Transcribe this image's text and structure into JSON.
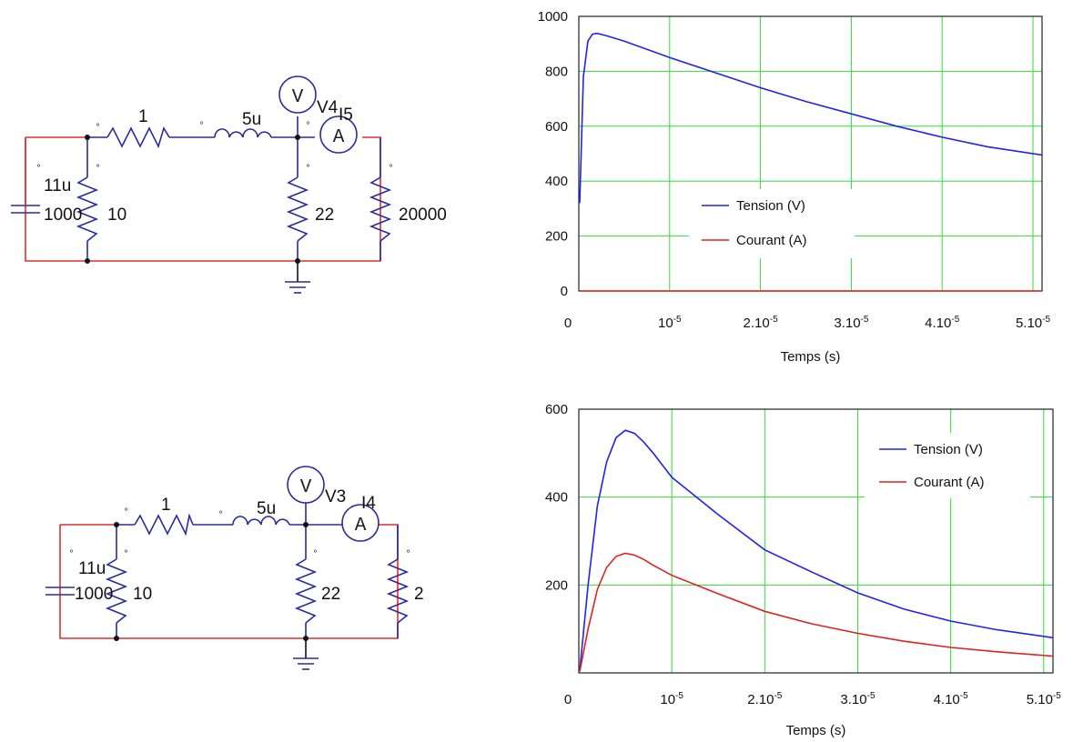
{
  "circuits": [
    {
      "labels": {
        "r_series": "1",
        "inductor": "5u",
        "capacitor": "11u",
        "cap_voltage": "1000",
        "r_parallel": "10",
        "r_mid": "22",
        "r_load": "20000",
        "voltmeter": "V",
        "voltmeter_name": "V4",
        "ammeter": "A",
        "ammeter_name": "I5"
      }
    },
    {
      "labels": {
        "r_series": "1",
        "inductor": "5u",
        "capacitor": "11u",
        "cap_voltage": "1000",
        "r_parallel": "10",
        "r_mid": "22",
        "r_load": "2",
        "voltmeter": "V",
        "voltmeter_name": "V3",
        "ammeter": "A",
        "ammeter_name": "I4"
      }
    }
  ],
  "chart_data": [
    {
      "type": "line",
      "title": "",
      "xlabel": "Temps (s)",
      "ylabel": "",
      "xlim": [
        0,
        5.1e-05
      ],
      "ylim": [
        0,
        1000
      ],
      "x_ticks": [
        {
          "value": 0,
          "mant": "0",
          "exp": ""
        },
        {
          "value": 1e-05,
          "mant": "10",
          "exp": "-5"
        },
        {
          "value": 2e-05,
          "mant": "2.10",
          "exp": "-5"
        },
        {
          "value": 3e-05,
          "mant": "3.10",
          "exp": "-5"
        },
        {
          "value": 4e-05,
          "mant": "4.10",
          "exp": "-5"
        },
        {
          "value": 5e-05,
          "mant": "5.10",
          "exp": "-5"
        }
      ],
      "y_ticks": [
        0,
        200,
        400,
        600,
        800,
        1000
      ],
      "grid": true,
      "legend_position": "center-left",
      "series": [
        {
          "name": "Tension (V)",
          "color": "#2222ee",
          "x": [
            1e-07,
            5e-07,
            1e-06,
            1.5e-06,
            2e-06,
            3e-06,
            5e-06,
            1e-05,
            1.5e-05,
            2e-05,
            2.5e-05,
            3e-05,
            3.5e-05,
            4e-05,
            4.5e-05,
            5.1e-05
          ],
          "y": [
            320,
            780,
            910,
            935,
            938,
            930,
            910,
            850,
            795,
            740,
            690,
            645,
            600,
            560,
            525,
            495
          ]
        },
        {
          "name": "Courant (A)",
          "color": "#dd2222",
          "x": [
            1e-07,
            5.1e-05
          ],
          "y": [
            0,
            0
          ]
        }
      ]
    },
    {
      "type": "line",
      "title": "",
      "xlabel": "Temps (s)",
      "ylabel": "",
      "xlim": [
        0,
        5.1e-05
      ],
      "ylim": [
        0,
        600
      ],
      "x_ticks": [
        {
          "value": 0,
          "mant": "0",
          "exp": ""
        },
        {
          "value": 1e-05,
          "mant": "10",
          "exp": "-5"
        },
        {
          "value": 2e-05,
          "mant": "2.10",
          "exp": "-5"
        },
        {
          "value": 3e-05,
          "mant": "3.10",
          "exp": "-5"
        },
        {
          "value": 4e-05,
          "mant": "4.10",
          "exp": "-5"
        },
        {
          "value": 5e-05,
          "mant": "5.10",
          "exp": "-5"
        }
      ],
      "y_ticks": [
        200,
        400,
        600
      ],
      "grid": true,
      "legend_position": "top-right",
      "series": [
        {
          "name": "Tension (V)",
          "color": "#2222ee",
          "x": [
            1e-07,
            1e-06,
            2e-06,
            3e-06,
            4e-06,
            5e-06,
            6e-06,
            7e-06,
            8e-06,
            1e-05,
            1.5e-05,
            2e-05,
            2.5e-05,
            3e-05,
            3.5e-05,
            4e-05,
            4.5e-05,
            5.1e-05
          ],
          "y": [
            5,
            200,
            380,
            480,
            535,
            552,
            545,
            525,
            500,
            445,
            360,
            280,
            230,
            182,
            145,
            118,
            98,
            80
          ]
        },
        {
          "name": "Courant (A)",
          "color": "#dd2222",
          "x": [
            1e-07,
            1e-06,
            2e-06,
            3e-06,
            4e-06,
            5e-06,
            6e-06,
            7e-06,
            8e-06,
            1e-05,
            1.5e-05,
            2e-05,
            2.5e-05,
            3e-05,
            3.5e-05,
            4e-05,
            4.5e-05,
            5.1e-05
          ],
          "y": [
            3,
            100,
            190,
            240,
            265,
            272,
            268,
            258,
            245,
            222,
            180,
            140,
            112,
            90,
            72,
            58,
            48,
            38
          ]
        }
      ]
    }
  ]
}
